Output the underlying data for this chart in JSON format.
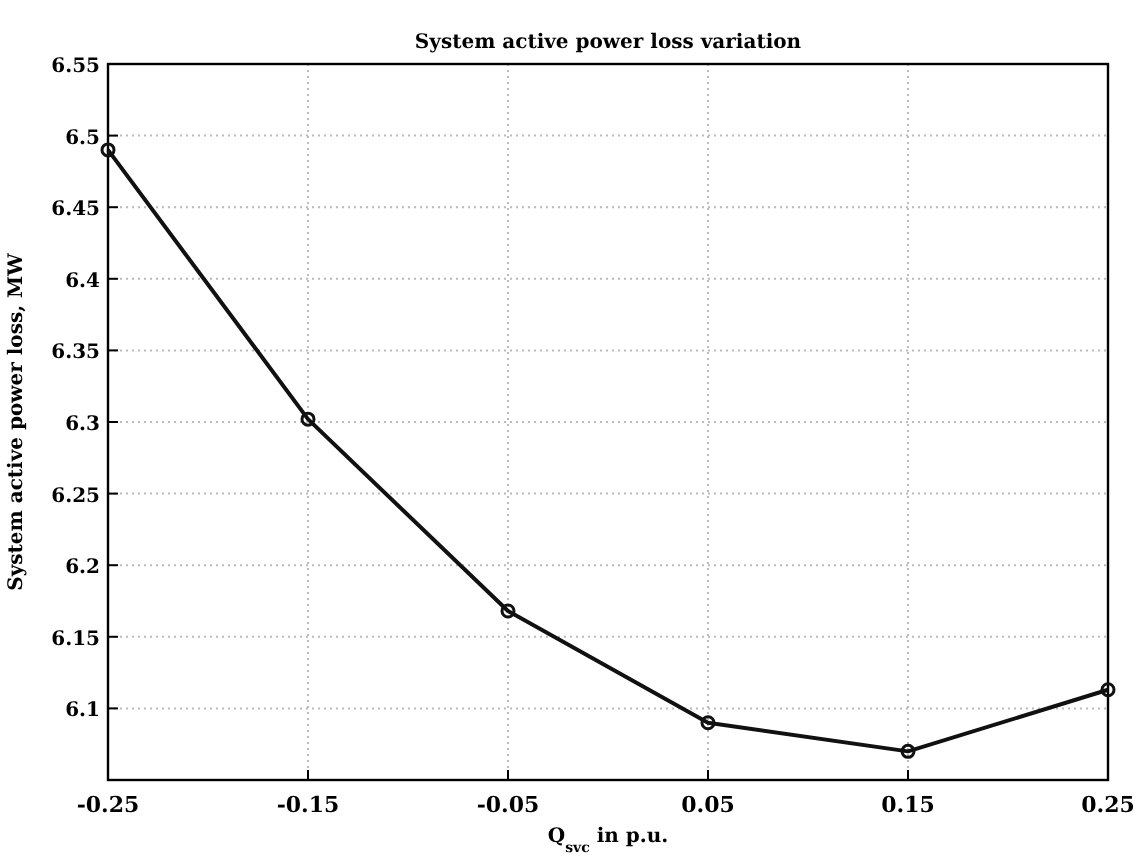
{
  "chart_data": {
    "type": "line",
    "title": "System active power loss variation",
    "xlabel": "Q$_{svc}$ in p.u.",
    "ylabel": "System active power loss, MW",
    "x": [
      -0.25,
      -0.15,
      -0.05,
      0.05,
      0.15,
      0.25
    ],
    "series": [
      {
        "color": "#111111",
        "values": [
          6.49,
          6.302,
          6.168,
          6.09,
          6.07,
          6.113
        ]
      }
    ],
    "xlim": [
      -0.25,
      0.25
    ],
    "xticks": [
      -0.25,
      -0.15,
      -0.05,
      0.05,
      0.15,
      0.25
    ],
    "ylim": [
      6.05,
      6.55
    ],
    "yticks": [
      6.1,
      6.15,
      6.2,
      6.25,
      6.3,
      6.35,
      6.4,
      6.45,
      6.5,
      6.55
    ],
    "grid": true,
    "marker": "circle",
    "line_style": "solid"
  }
}
